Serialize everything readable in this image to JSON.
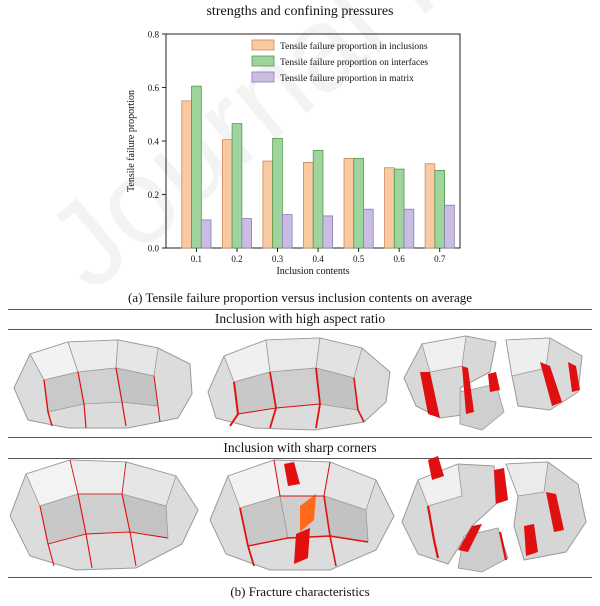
{
  "header": {
    "title": "strengths and confining pressures"
  },
  "chart_data": {
    "type": "bar",
    "categories": [
      "0.1",
      "0.2",
      "0.3",
      "0.4",
      "0.5",
      "0.6",
      "0.7"
    ],
    "series": [
      {
        "name": "Tensile failure proportion in inclusions",
        "values": [
          0.55,
          0.405,
          0.325,
          0.32,
          0.335,
          0.3,
          0.315
        ]
      },
      {
        "name": "Tensile failure proportion on interfaces",
        "values": [
          0.605,
          0.465,
          0.41,
          0.365,
          0.335,
          0.295,
          0.29
        ]
      },
      {
        "name": "Tensile failure proportion in matrix",
        "values": [
          0.105,
          0.11,
          0.125,
          0.12,
          0.145,
          0.145,
          0.16
        ]
      }
    ],
    "xlabel": "Inclusion contents",
    "ylabel": "Tensile failure proportion",
    "ylim": [
      0,
      0.8
    ],
    "yticks": [
      "0.0",
      "0.2",
      "0.4",
      "0.6",
      "0.8"
    ],
    "colors": [
      "#f9c9a2",
      "#9fd49c",
      "#c9bde2"
    ],
    "edge_colors": [
      "#c98a5c",
      "#4f9a4c",
      "#8a7bb8"
    ],
    "legend_position": "top-right",
    "grid": false
  },
  "captions": {
    "a": "(a) Tensile failure proportion versus inclusion contents on average",
    "b": "(b) Fracture characteristics"
  },
  "sections": {
    "high_aspect": "Inclusion with high aspect ratio",
    "sharp_corners": "Inclusion with sharp corners"
  },
  "watermark": "Journal Pre-proof",
  "colors": {
    "fracture": "#e01010",
    "mesh_face": "#d6d6d6",
    "mesh_edge": "#9a9a9a"
  }
}
